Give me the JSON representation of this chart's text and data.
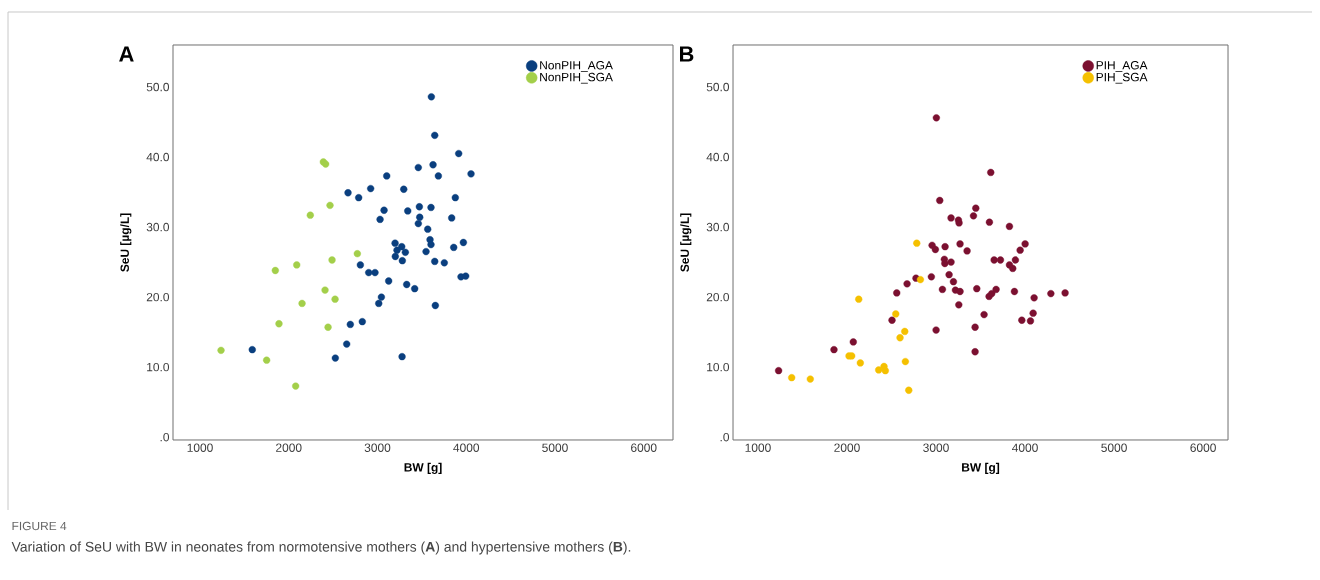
{
  "chart_data": [
    {
      "type": "scatter",
      "title": "A",
      "xlabel": "BW [g]",
      "ylabel": "SeU [µg/L]",
      "xlim": [
        696,
        6330
      ],
      "ylim": [
        -0.4,
        56
      ],
      "xticks": [
        1000,
        2000,
        3000,
        4000,
        5000,
        6000
      ],
      "yticks": [
        {
          "value": 0,
          "label": ".0"
        },
        {
          "value": 10,
          "label": "10.0"
        },
        {
          "value": 20,
          "label": "20.0"
        },
        {
          "value": 30,
          "label": "30.0"
        },
        {
          "value": 40,
          "label": "40.0"
        },
        {
          "value": 50,
          "label": "50.0"
        }
      ],
      "grid": false,
      "legend": "top right",
      "marker": "circle",
      "annotations": [
        "FIGURE 4",
        "Variation of SeU with BW in neonates from normotensive mothers (**A**) and hypertensive mothers (**B**)."
      ],
      "series": [
        {
          "name": "NonPIH_AGA",
          "color": "#0a3f7f",
          "x": [
            3607,
            3645,
            3915,
            3626,
            3460,
            3686,
            4054,
            3104,
            2668,
            2788,
            2923,
            3296,
            3877,
            3074,
            3341,
            3472,
            3603,
            3029,
            3457,
            3476,
            3460,
            3836,
            3566,
            3592,
            3603,
            3968,
            3859,
            3198,
            3273,
            3220,
            3314,
            3201,
            3547,
            3280,
            3645,
            3753,
            2807,
            2901,
            2972,
            3126,
            3941,
            3994,
            3329,
            3419,
            3044,
            3014,
            3652,
            2829,
            2694,
            2653,
            1589,
            2525,
            3277
          ],
          "values": [
            48.6,
            43.1,
            40.5,
            38.9,
            38.5,
            37.3,
            37.6,
            37.3,
            34.9,
            34.2,
            35.5,
            35.4,
            34.2,
            32.4,
            32.3,
            32.9,
            32.8,
            31.1,
            null,
            31.4,
            30.5,
            31.3,
            29.7,
            28.2,
            27.5,
            27.8,
            27.1,
            27.7,
            27.2,
            26.7,
            26.4,
            25.8,
            26.5,
            25.2,
            25.1,
            24.9,
            24.6,
            23.5,
            23.5,
            22.3,
            22.9,
            23.0,
            21.8,
            21.2,
            20.0,
            19.1,
            18.8,
            16.5,
            16.1,
            13.3,
            12.5,
            11.3,
            11.5
          ]
        },
        {
          "name": "NonPIH_SGA",
          "color": "#a3cf4a",
          "x": [
            2390,
            2416,
            2465,
            2243,
            2773,
            2488,
            1849,
            2090,
            2409,
            2522,
            2150,
            1890,
            2443,
            1237,
            1751,
            2078
          ],
          "values": [
            39.3,
            39.0,
            33.1,
            31.7,
            26.2,
            25.3,
            23.8,
            24.6,
            21.0,
            19.7,
            19.1,
            16.2,
            15.7,
            12.4,
            11.0,
            7.3
          ]
        }
      ]
    },
    {
      "type": "scatter",
      "title": "B",
      "xlabel": "BW [g]",
      "ylabel": "SeU [µg/L]",
      "xlim": [
        720,
        6280
      ],
      "ylim": [
        -0.4,
        56
      ],
      "xticks": [
        1000,
        2000,
        3000,
        4000,
        5000,
        6000
      ],
      "yticks": [
        {
          "value": 0,
          "label": ".0"
        },
        {
          "value": 10,
          "label": "10.0"
        },
        {
          "value": 20,
          "label": "20.0"
        },
        {
          "value": 30,
          "label": "30.0"
        },
        {
          "value": 40,
          "label": "40.0"
        },
        {
          "value": 50,
          "label": "50.0"
        }
      ],
      "grid": false,
      "legend": "top right",
      "marker": "circle",
      "series": [
        {
          "name": "PIH_AGA",
          "color": "#7b1030",
          "x": [
            3004,
            3615,
            3042,
            3169,
            3252,
            3259,
            3421,
            3447,
            3600,
            3825,
            2956,
            2993,
            3102,
            3270,
            3349,
            4001,
            3945,
            3094,
            3653,
            3724,
            3892,
            3099,
            3169,
            3147,
            3196,
            2775,
            2948,
            2675,
            2559,
            3072,
            3218,
            3270,
            3458,
            3256,
            3596,
            3626,
            3675,
            3881,
            4102,
            4290,
            4450,
            3540,
            4091,
            3964,
            4061,
            3439,
            3001,
            3439,
            2506,
            2071,
            1854,
            1232,
            3825,
            3862
          ],
          "values": [
            45.6,
            37.8,
            33.8,
            31.3,
            31.0,
            30.6,
            31.6,
            32.7,
            30.7,
            30.1,
            27.4,
            26.8,
            27.2,
            27.6,
            26.6,
            27.6,
            26.7,
            25.4,
            25.3,
            25.3,
            25.3,
            24.8,
            25.0,
            23.2,
            22.2,
            22.7,
            22.9,
            21.9,
            20.6,
            21.1,
            21.0,
            20.8,
            21.2,
            18.9,
            20.1,
            20.5,
            21.1,
            20.8,
            19.9,
            20.5,
            20.6,
            17.5,
            17.7,
            16.7,
            16.6,
            15.7,
            15.3,
            12.2,
            16.7,
            13.6,
            12.5,
            9.5,
            24.6,
            24.1
          ]
        },
        {
          "name": "PIH_SGA",
          "color": "#f5c000",
          "x": [
            2784,
            2825,
            2132,
            2548,
            2649,
            2596,
            2023,
            2053,
            2150,
            2656,
            2356,
            2416,
            2431,
            1379,
            1588,
            2694
          ],
          "values": [
            27.7,
            22.5,
            19.7,
            17.6,
            15.1,
            14.2,
            11.6,
            11.6,
            10.6,
            10.8,
            9.6,
            10.1,
            9.5,
            8.5,
            8.3,
            6.7
          ]
        }
      ]
    }
  ]
}
